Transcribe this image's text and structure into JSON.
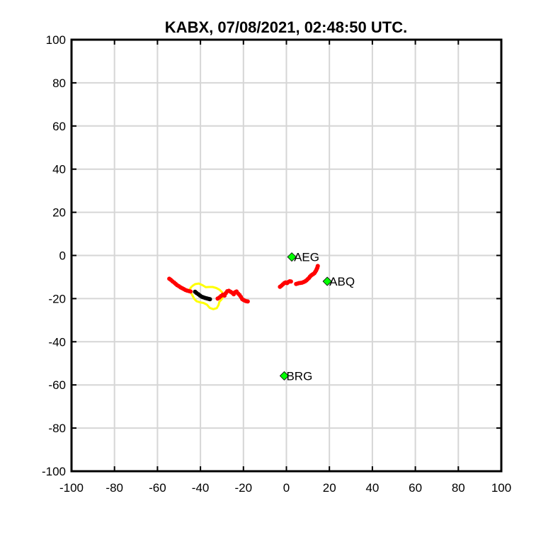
{
  "chart_data": {
    "type": "scatter",
    "title": "KABX, 07/08/2021, 02:48:50 UTC.",
    "xlabel": "",
    "ylabel": "",
    "xlim": [
      -100,
      100
    ],
    "ylim": [
      -100,
      100
    ],
    "grid": true,
    "x_ticks": [
      -100,
      -80,
      -60,
      -40,
      -20,
      0,
      20,
      40,
      60,
      80,
      100
    ],
    "y_ticks": [
      -100,
      -80,
      -60,
      -40,
      -20,
      0,
      20,
      40,
      60,
      80,
      100
    ],
    "x_tick_labels": [
      "-100",
      "-80",
      "-60",
      "-40",
      "-20",
      "0",
      "20",
      "40",
      "60",
      "80",
      "100"
    ],
    "y_tick_labels": [
      "-100",
      "-80",
      "-60",
      "-40",
      "-20",
      "0",
      "20",
      "40",
      "60",
      "80",
      "100"
    ],
    "stations": [
      {
        "name": "AEG",
        "x": 2.5,
        "y": -0.7
      },
      {
        "name": "ABQ",
        "x": 19.0,
        "y": -12.0
      },
      {
        "name": "BRG",
        "x": -1.0,
        "y": -55.8
      }
    ],
    "series": [
      {
        "color": "#ff0000",
        "marker": "dot",
        "points": [
          [
            -54.5,
            -10.8
          ],
          [
            -53.8,
            -11.3
          ],
          [
            -53.0,
            -12.0
          ],
          [
            -52.2,
            -12.6
          ],
          [
            -51.5,
            -13.2
          ],
          [
            -50.8,
            -13.8
          ],
          [
            -50.0,
            -14.3
          ],
          [
            -49.2,
            -14.8
          ],
          [
            -48.5,
            -15.2
          ],
          [
            -47.7,
            -15.6
          ],
          [
            -47.0,
            -16.0
          ],
          [
            -46.2,
            -16.3
          ],
          [
            -45.4,
            -16.5
          ],
          [
            -44.6,
            -16.7
          ],
          [
            -32.0,
            -20.0
          ],
          [
            -31.2,
            -19.5
          ],
          [
            -30.4,
            -18.8
          ],
          [
            -29.6,
            -18.2
          ],
          [
            -28.8,
            -18.6
          ],
          [
            -28.2,
            -17.5
          ],
          [
            -27.5,
            -16.6
          ],
          [
            -26.8,
            -16.4
          ],
          [
            -26.0,
            -16.8
          ],
          [
            -25.2,
            -17.3
          ],
          [
            -24.5,
            -18.0
          ],
          [
            -23.8,
            -17.0
          ],
          [
            -23.2,
            -16.7
          ],
          [
            -22.5,
            -17.6
          ],
          [
            -21.8,
            -18.3
          ],
          [
            -21.2,
            -19.2
          ],
          [
            -20.6,
            -20.2
          ],
          [
            -20.0,
            -20.6
          ],
          [
            -19.3,
            -21.0
          ],
          [
            -18.6,
            -21.2
          ],
          [
            -18.0,
            -21.3
          ],
          [
            -3.0,
            -14.5
          ],
          [
            -2.3,
            -14.0
          ],
          [
            -1.6,
            -13.4
          ],
          [
            -1.0,
            -12.8
          ],
          [
            -0.4,
            -12.5
          ],
          [
            0.3,
            -12.8
          ],
          [
            0.9,
            -12.3
          ],
          [
            1.5,
            -12.0
          ],
          [
            2.1,
            -12.1
          ],
          [
            4.5,
            -13.2
          ],
          [
            5.2,
            -13.0
          ],
          [
            5.9,
            -12.8
          ],
          [
            6.6,
            -12.7
          ],
          [
            7.3,
            -12.6
          ],
          [
            8.0,
            -12.3
          ],
          [
            8.7,
            -12.0
          ],
          [
            9.3,
            -11.6
          ],
          [
            9.9,
            -11.0
          ],
          [
            10.5,
            -10.4
          ],
          [
            11.0,
            -9.8
          ],
          [
            11.5,
            -9.3
          ],
          [
            12.0,
            -8.9
          ],
          [
            12.5,
            -8.6
          ],
          [
            13.0,
            -8.2
          ],
          [
            13.4,
            -7.6
          ],
          [
            13.8,
            -7.0
          ],
          [
            14.1,
            -6.3
          ],
          [
            14.4,
            -5.6
          ],
          [
            14.6,
            -4.9
          ]
        ]
      },
      {
        "color": "#000000",
        "marker": "dot",
        "points": [
          [
            -42.5,
            -16.8
          ],
          [
            -41.8,
            -17.4
          ],
          [
            -41.0,
            -18.0
          ],
          [
            -40.2,
            -18.6
          ],
          [
            -39.4,
            -19.1
          ],
          [
            -38.6,
            -19.4
          ],
          [
            -37.8,
            -19.7
          ],
          [
            -37.0,
            -19.9
          ],
          [
            -36.2,
            -20.1
          ],
          [
            -35.6,
            -20.3
          ]
        ]
      }
    ],
    "outline": {
      "color": "#ffff00",
      "points": [
        [
          -44.0,
          -14.3
        ],
        [
          -42.5,
          -13.3
        ],
        [
          -40.8,
          -13.0
        ],
        [
          -39.0,
          -13.8
        ],
        [
          -37.5,
          -14.7
        ],
        [
          -36.0,
          -14.6
        ],
        [
          -34.3,
          -14.6
        ],
        [
          -32.6,
          -15.1
        ],
        [
          -31.1,
          -15.9
        ],
        [
          -29.9,
          -17.1
        ],
        [
          -29.4,
          -18.8
        ],
        [
          -30.0,
          -20.2
        ],
        [
          -31.2,
          -21.5
        ],
        [
          -31.6,
          -23.0
        ],
        [
          -32.4,
          -24.4
        ],
        [
          -34.0,
          -24.9
        ],
        [
          -35.7,
          -24.3
        ],
        [
          -37.0,
          -22.8
        ],
        [
          -38.6,
          -22.0
        ],
        [
          -40.3,
          -21.7
        ],
        [
          -41.8,
          -21.2
        ],
        [
          -42.9,
          -20.1
        ],
        [
          -43.7,
          -18.6
        ],
        [
          -44.5,
          -17.1
        ],
        [
          -45.0,
          -15.7
        ],
        [
          -44.0,
          -14.3
        ]
      ]
    }
  }
}
